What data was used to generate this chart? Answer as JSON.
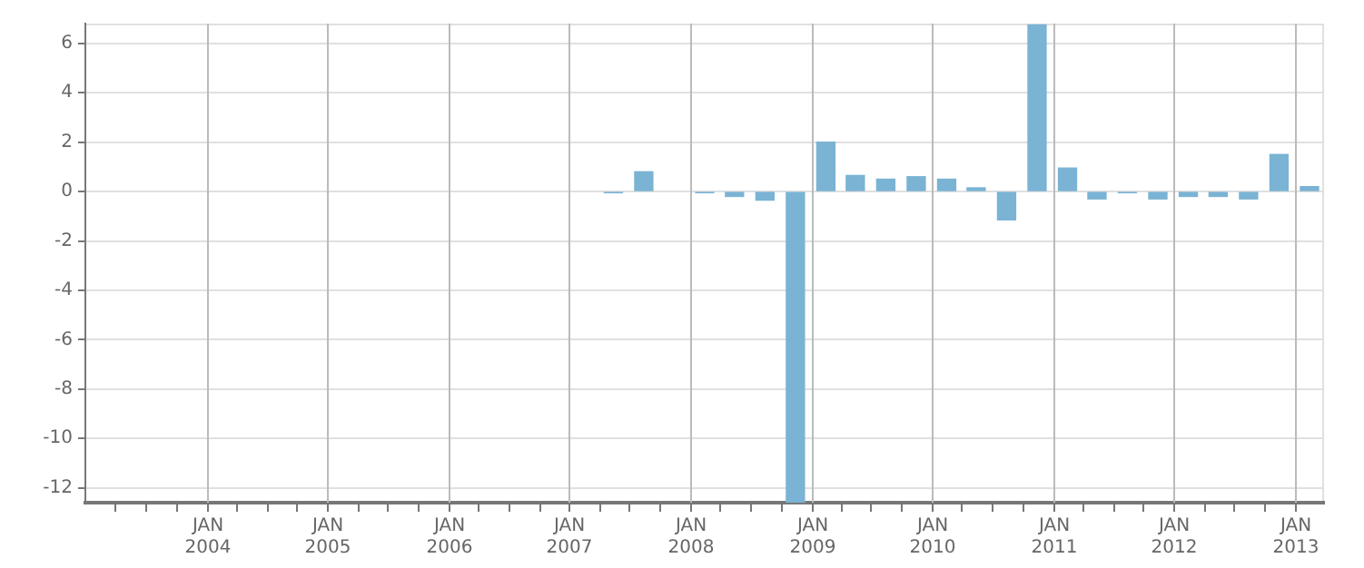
{
  "chart_data": {
    "type": "bar",
    "color": "#7ab3d4",
    "x": [
      "2007-05-15",
      "2007-08-15",
      "2008-02-15",
      "2008-05-15",
      "2008-08-15",
      "2008-11-15",
      "2009-02-15",
      "2009-05-15",
      "2009-08-15",
      "2009-11-15",
      "2010-02-15",
      "2010-05-15",
      "2010-08-15",
      "2010-11-15",
      "2011-02-15",
      "2011-05-15",
      "2011-08-15",
      "2011-11-15",
      "2012-02-15",
      "2012-05-15",
      "2012-08-15",
      "2012-11-15",
      "2013-02-15"
    ],
    "values": [
      -0.05,
      0.8,
      -0.05,
      -0.2,
      -0.35,
      -12.6,
      2.0,
      0.65,
      0.5,
      0.6,
      0.5,
      0.15,
      -1.15,
      6.75,
      0.95,
      -0.3,
      -0.05,
      -0.3,
      -0.2,
      -0.2,
      -0.3,
      1.5,
      0.2
    ],
    "xlim": [
      "2003-01-01",
      "2013-03-31"
    ],
    "xticks": [
      {
        "value": "2003-04-01",
        "label": null
      },
      {
        "value": "2003-07-01",
        "label": null
      },
      {
        "value": "2003-10-01",
        "label": null
      },
      {
        "value": "2004-01-01",
        "label": "JAN 2004"
      },
      {
        "value": "2004-04-01",
        "label": null
      },
      {
        "value": "2004-07-01",
        "label": null
      },
      {
        "value": "2004-10-01",
        "label": null
      },
      {
        "value": "2005-01-01",
        "label": "JAN 2005"
      },
      {
        "value": "2005-04-01",
        "label": null
      },
      {
        "value": "2005-07-01",
        "label": null
      },
      {
        "value": "2005-10-01",
        "label": null
      },
      {
        "value": "2006-01-01",
        "label": "JAN 2006"
      },
      {
        "value": "2006-04-01",
        "label": null
      },
      {
        "value": "2006-07-01",
        "label": null
      },
      {
        "value": "2006-10-01",
        "label": null
      },
      {
        "value": "2007-01-01",
        "label": "JAN 2007"
      },
      {
        "value": "2007-04-01",
        "label": null
      },
      {
        "value": "2007-07-01",
        "label": null
      },
      {
        "value": "2007-10-01",
        "label": null
      },
      {
        "value": "2008-01-01",
        "label": "JAN 2008"
      },
      {
        "value": "2008-04-01",
        "label": null
      },
      {
        "value": "2008-07-01",
        "label": null
      },
      {
        "value": "2008-10-01",
        "label": null
      },
      {
        "value": "2009-01-01",
        "label": "JAN 2009"
      },
      {
        "value": "2009-04-01",
        "label": null
      },
      {
        "value": "2009-07-01",
        "label": null
      },
      {
        "value": "2009-10-01",
        "label": null
      },
      {
        "value": "2010-01-01",
        "label": "JAN 2010"
      },
      {
        "value": "2010-04-01",
        "label": null
      },
      {
        "value": "2010-07-01",
        "label": null
      },
      {
        "value": "2010-10-01",
        "label": null
      },
      {
        "value": "2011-01-01",
        "label": "JAN 2011"
      },
      {
        "value": "2011-04-01",
        "label": null
      },
      {
        "value": "2011-07-01",
        "label": null
      },
      {
        "value": "2011-10-01",
        "label": null
      },
      {
        "value": "2012-01-01",
        "label": "JAN 2012"
      },
      {
        "value": "2012-04-01",
        "label": null
      },
      {
        "value": "2012-07-01",
        "label": null
      },
      {
        "value": "2012-10-01",
        "label": null
      },
      {
        "value": "2013-01-01",
        "label": "JAN 2013"
      }
    ],
    "ylim": [
      -12.6,
      6.8
    ],
    "yticks": [
      -12,
      -10,
      -8,
      -6,
      -4,
      -2,
      0,
      2,
      4,
      6
    ],
    "grid": true
  }
}
